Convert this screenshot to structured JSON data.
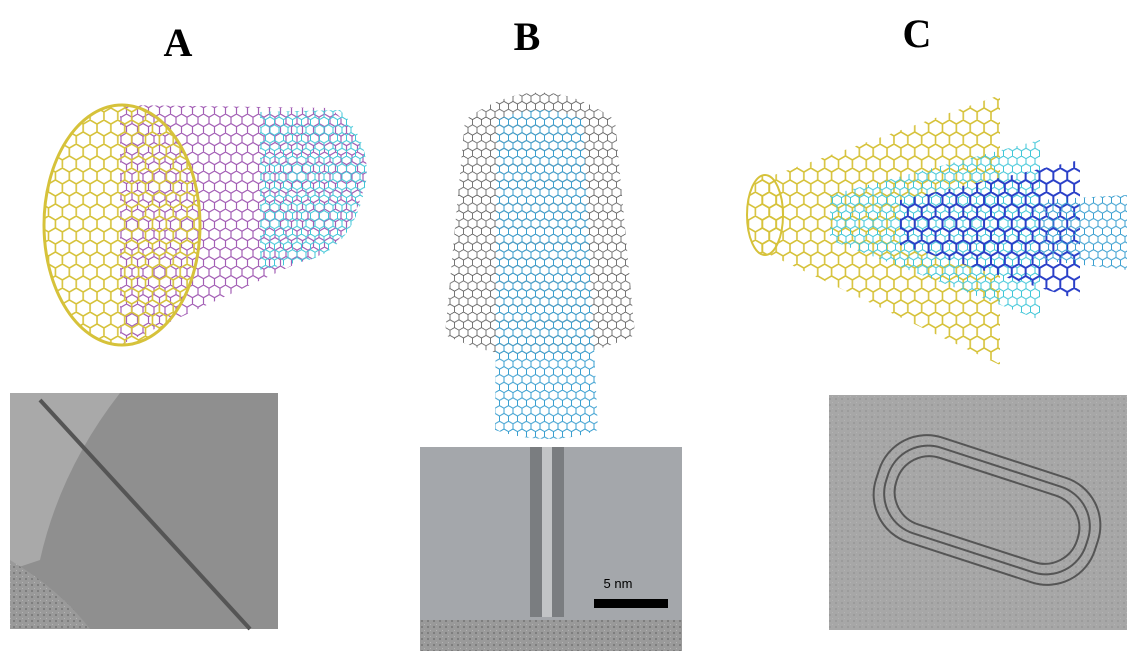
{
  "panels": [
    {
      "label": "A"
    },
    {
      "label": "B",
      "scale_bar": "5 nm"
    },
    {
      "label": "C"
    }
  ]
}
